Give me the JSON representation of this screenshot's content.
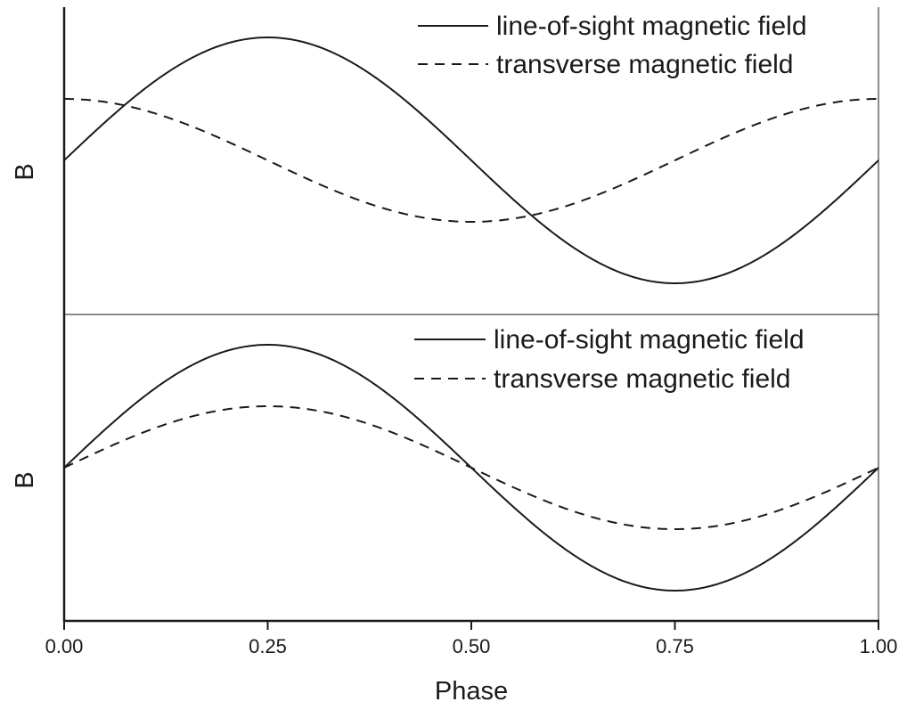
{
  "chart_data": [
    {
      "type": "line",
      "panel": "top",
      "ylabel": "B",
      "xlim": [
        0,
        1
      ],
      "ylim": [
        -1.2,
        1.2
      ],
      "grid": false,
      "legend": "top-right",
      "series": [
        {
          "name": "line-of-sight magnetic field",
          "style": "solid",
          "function": "sin(2*pi*phase)",
          "x": [
            0,
            0.125,
            0.25,
            0.375,
            0.5,
            0.625,
            0.75,
            0.875,
            1.0
          ],
          "y": [
            0,
            0.71,
            1.0,
            0.71,
            0,
            -0.71,
            -1.0,
            -0.71,
            0
          ]
        },
        {
          "name": "transverse magnetic field",
          "style": "dashed",
          "function": "0.5*cos(2*pi*phase)",
          "x": [
            0,
            0.125,
            0.25,
            0.375,
            0.5,
            0.625,
            0.75,
            0.875,
            1.0
          ],
          "y": [
            0.5,
            0.35,
            0,
            -0.35,
            -0.5,
            -0.35,
            0,
            0.35,
            0.5
          ]
        }
      ]
    },
    {
      "type": "line",
      "panel": "bottom",
      "ylabel": "B",
      "xlabel": "Phase",
      "xlim": [
        0,
        1
      ],
      "ylim": [
        -1.2,
        1.2
      ],
      "grid": false,
      "legend": "top-right",
      "xticks": [
        "0.00",
        "0.25",
        "0.50",
        "0.75",
        "1.00"
      ],
      "series": [
        {
          "name": "line-of-sight magnetic field",
          "style": "solid",
          "function": "sin(2*pi*phase)",
          "x": [
            0,
            0.125,
            0.25,
            0.375,
            0.5,
            0.625,
            0.75,
            0.875,
            1.0
          ],
          "y": [
            0,
            0.71,
            1.0,
            0.71,
            0,
            -0.71,
            -1.0,
            -0.71,
            0
          ]
        },
        {
          "name": "transverse magnetic field",
          "style": "dashed",
          "function": "0.5*sin(2*pi*phase)",
          "x": [
            0,
            0.125,
            0.25,
            0.375,
            0.5,
            0.625,
            0.75,
            0.875,
            1.0
          ],
          "y": [
            0,
            0.35,
            0.5,
            0.35,
            0,
            -0.35,
            -0.5,
            -0.35,
            0
          ]
        }
      ]
    }
  ],
  "labels": {
    "top_ylabel": "B",
    "bottom_ylabel": "B",
    "xlabel": "Phase",
    "xticks": [
      "0.00",
      "0.25",
      "0.50",
      "0.75",
      "1.00"
    ],
    "legend_solid": "line-of-sight magnetic field",
    "legend_dashed": "transverse magnetic field"
  },
  "colors": {
    "line": "#1a1a1a",
    "background": "#ffffff"
  }
}
